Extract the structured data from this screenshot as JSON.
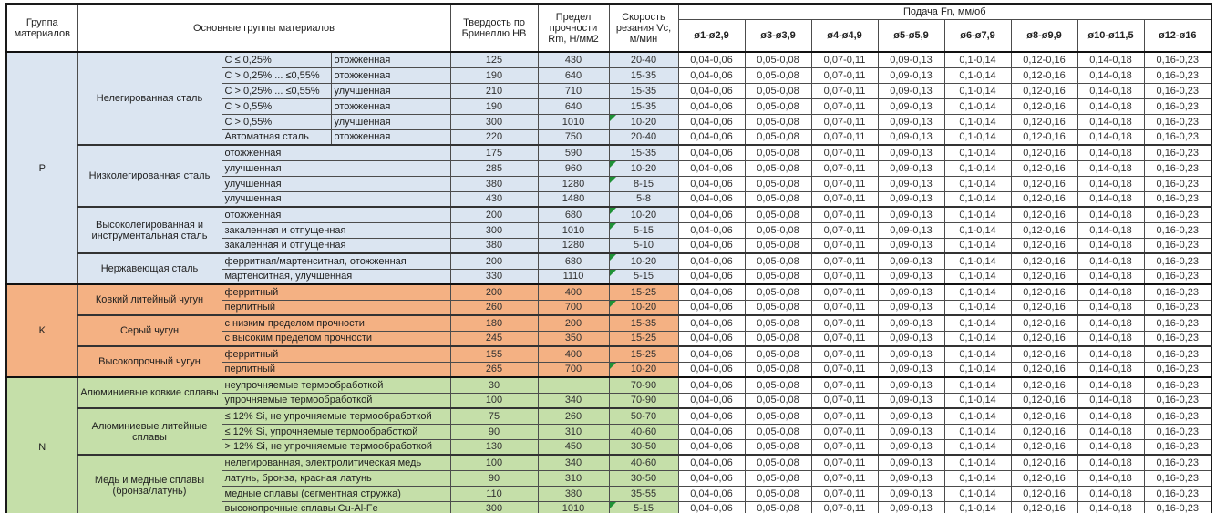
{
  "header": {
    "col_group": "Группа материалов",
    "col_materials": "Основные группы материалов",
    "col_hardness": "Твердость по Бринеллю HB",
    "col_strength": "Предел прочности Rm, Н/мм2",
    "col_speed": "Скорость резания Vc, м/мин",
    "col_feed": "Подача Fn, мм/об",
    "diameters": [
      "ø1-ø2,9",
      "ø3-ø3,9",
      "ø4-ø4,9",
      "ø5-ø5,9",
      "ø6-ø7,9",
      "ø8-ø9,9",
      "ø10-ø11,5",
      "ø12-ø16"
    ]
  },
  "feed_values": [
    "0,04-0,06",
    "0,05-0,08",
    "0,07-0,11",
    "0,09-0,13",
    "0,1-0,14",
    "0,12-0,16",
    "0,14-0,18",
    "0,16-0,23"
  ],
  "colors": {
    "group_p": "#dbe5f1",
    "group_k": "#f4b183",
    "group_n": "#c5dfa9",
    "flag_triangle": "#1f9136"
  },
  "groups": [
    {
      "code": "P",
      "color": "#dbe5f1",
      "families": [
        {
          "name": "Нелегированная сталь",
          "rows": [
            {
              "c1": "C ≤ 0,25%",
              "c2": "отожженная",
              "hb": "125",
              "rm": "430",
              "vc": "20-40",
              "flag": false
            },
            {
              "c1": "C > 0,25% ... ≤0,55%",
              "c2": "отожженная",
              "hb": "190",
              "rm": "640",
              "vc": "15-35",
              "flag": false
            },
            {
              "c1": "C > 0,25% ... ≤0,55%",
              "c2": "улучшенная",
              "hb": "210",
              "rm": "710",
              "vc": "15-35",
              "flag": false
            },
            {
              "c1": "C > 0,55%",
              "c2": "отожженная",
              "hb": "190",
              "rm": "640",
              "vc": "15-35",
              "flag": false
            },
            {
              "c1": "C > 0,55%",
              "c2": "улучшенная",
              "hb": "300",
              "rm": "1010",
              "vc": "10-20",
              "flag": true
            },
            {
              "c1": "Автоматная сталь",
              "c2": "отожженная",
              "hb": "220",
              "rm": "750",
              "vc": "20-40",
              "flag": false
            }
          ]
        },
        {
          "name": "Низколегированная сталь",
          "rows": [
            {
              "desc": "отожженная",
              "hb": "175",
              "rm": "590",
              "vc": "15-35",
              "flag": false
            },
            {
              "desc": "улучшенная",
              "hb": "285",
              "rm": "960",
              "vc": "10-20",
              "flag": true
            },
            {
              "desc": "улучшенная",
              "hb": "380",
              "rm": "1280",
              "vc": "8-15",
              "flag": true
            },
            {
              "desc": "улучшенная",
              "hb": "430",
              "rm": "1480",
              "vc": "5-8",
              "flag": false
            }
          ]
        },
        {
          "name": "Высоколегированная и инструментальная сталь",
          "rows": [
            {
              "desc": "отожженная",
              "hb": "200",
              "rm": "680",
              "vc": "10-20",
              "flag": true
            },
            {
              "desc": "закаленная и отпущенная",
              "hb": "300",
              "rm": "1010",
              "vc": "5-15",
              "flag": true
            },
            {
              "desc": "закаленная и отпущенная",
              "hb": "380",
              "rm": "1280",
              "vc": "5-10",
              "flag": false
            }
          ]
        },
        {
          "name": "Нержавеющая сталь",
          "rows": [
            {
              "desc": "ферритная/мартенситная, отожженная",
              "hb": "200",
              "rm": "680",
              "vc": "10-20",
              "flag": true
            },
            {
              "desc": "мартенситная, улучшенная",
              "hb": "330",
              "rm": "1110",
              "vc": "5-15",
              "flag": true
            }
          ]
        }
      ]
    },
    {
      "code": "K",
      "color": "#f4b183",
      "families": [
        {
          "name": "Ковкий литейный чугун",
          "rows": [
            {
              "desc": "ферритный",
              "hb": "200",
              "rm": "400",
              "vc": "15-25",
              "flag": false
            },
            {
              "desc": "перлитный",
              "hb": "260",
              "rm": "700",
              "vc": "10-20",
              "flag": true
            }
          ]
        },
        {
          "name": "Серый чугун",
          "rows": [
            {
              "desc": "с низким пределом прочности",
              "hb": "180",
              "rm": "200",
              "vc": "15-35",
              "flag": false
            },
            {
              "desc": "с высоким пределом прочности",
              "hb": "245",
              "rm": "350",
              "vc": "15-25",
              "flag": false
            }
          ]
        },
        {
          "name": "Высокопрочный чугун",
          "rows": [
            {
              "desc": "ферритный",
              "hb": "155",
              "rm": "400",
              "vc": "15-25",
              "flag": false
            },
            {
              "desc": "перлитный",
              "hb": "265",
              "rm": "700",
              "vc": "10-20",
              "flag": true
            }
          ]
        }
      ]
    },
    {
      "code": "N",
      "color": "#c5dfa9",
      "families": [
        {
          "name": "Алюминиевые ковкие сплавы",
          "rows": [
            {
              "desc": "неупрочняемые термообработкой",
              "hb": "30",
              "rm": "",
              "vc": "70-90",
              "flag": false
            },
            {
              "desc": "упрочняемые термообработкой",
              "hb": "100",
              "rm": "340",
              "vc": "70-90",
              "flag": false
            }
          ]
        },
        {
          "name": "Алюминиевые литейные сплавы",
          "rows": [
            {
              "desc": "≤ 12% Si, не упрочняемые термообработкой",
              "hb": "75",
              "rm": "260",
              "vc": "50-70",
              "flag": false
            },
            {
              "desc": "≤ 12% Si, упрочняемые термообработкой",
              "hb": "90",
              "rm": "310",
              "vc": "40-60",
              "flag": false
            },
            {
              "desc": "> 12% Si, не упрочняемые термообработкой",
              "hb": "130",
              "rm": "450",
              "vc": "30-50",
              "flag": false
            }
          ]
        },
        {
          "name": "Медь и медные сплавы (бронза/латунь)",
          "rows": [
            {
              "desc": "нелегированная, электролитическая медь",
              "hb": "100",
              "rm": "340",
              "vc": "40-60",
              "flag": false
            },
            {
              "desc": "латунь, бронза, красная латунь",
              "hb": "90",
              "rm": "310",
              "vc": "30-50",
              "flag": false
            },
            {
              "desc": "медные сплавы (сегментная стружка)",
              "hb": "110",
              "rm": "380",
              "vc": "35-55",
              "flag": false
            },
            {
              "desc": "высокопрочные сплавы Cu-Al-Fe",
              "hb": "300",
              "rm": "1010",
              "vc": "5-15",
              "flag": true
            }
          ]
        }
      ]
    }
  ]
}
